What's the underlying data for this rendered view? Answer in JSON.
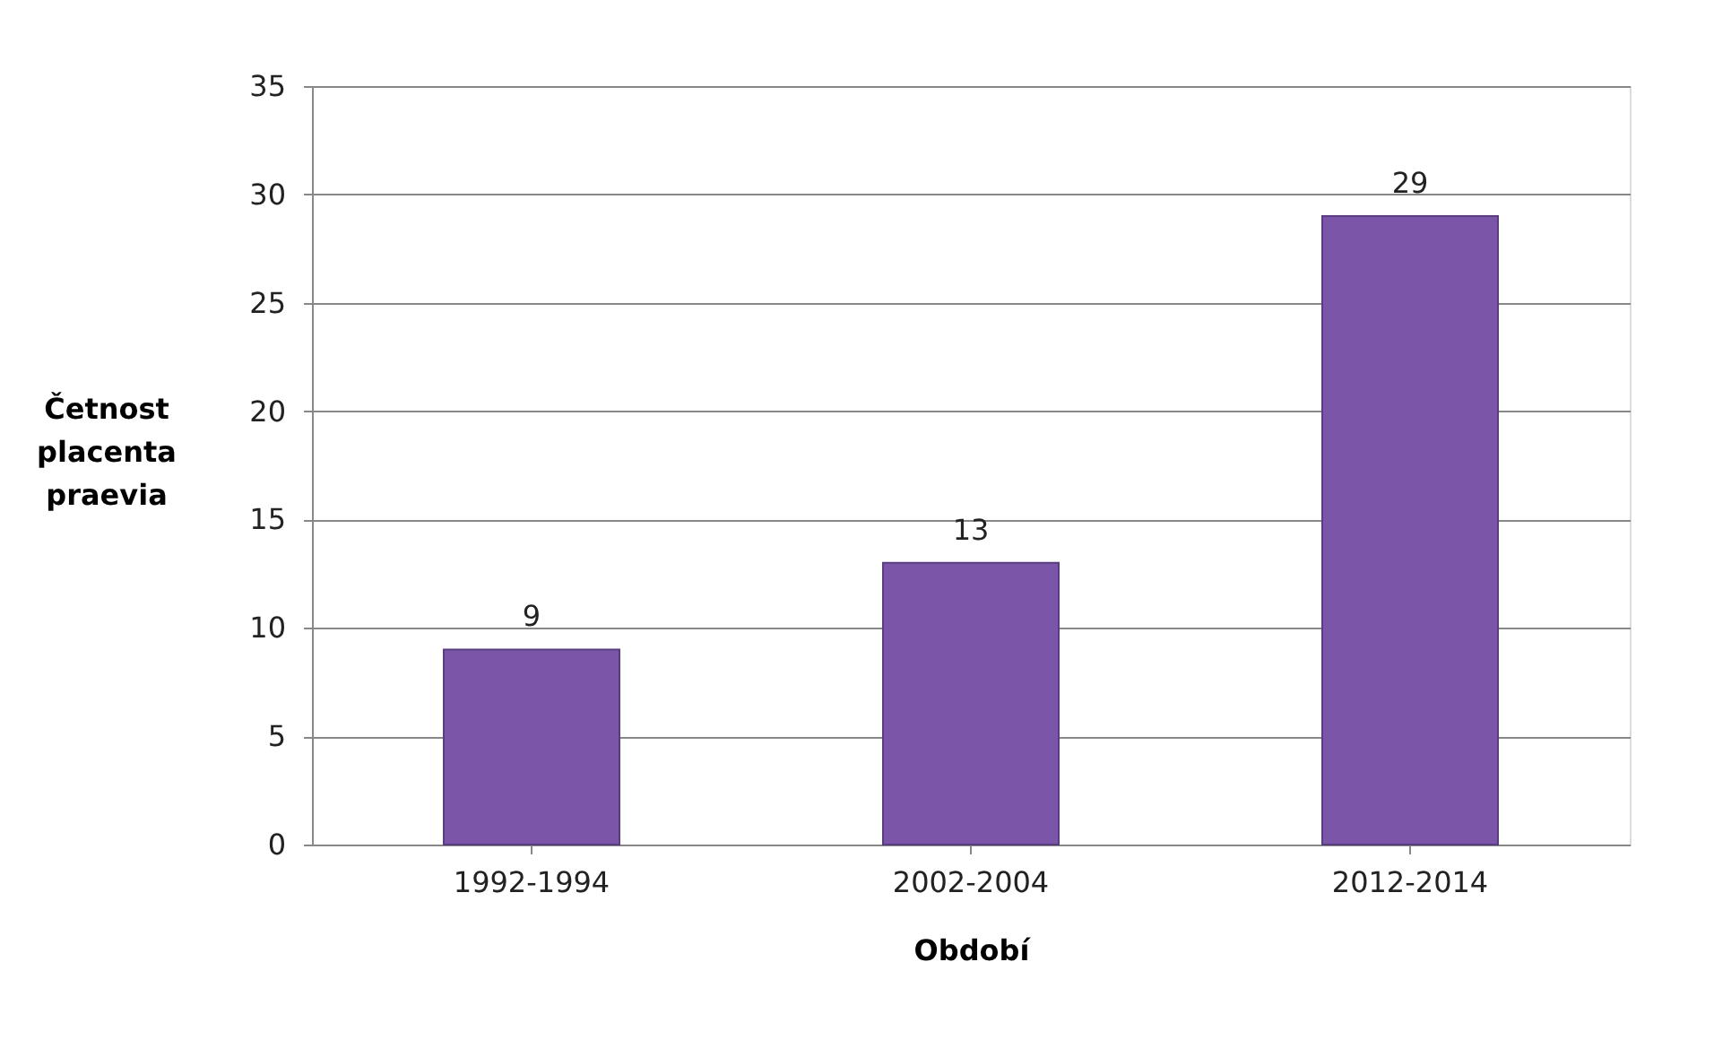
{
  "chart_data": {
    "type": "bar",
    "xlabel": "Období",
    "ylabel": "Četnost placenta praevia",
    "categories": [
      "1992-1994",
      "2002-2004",
      "2012-2014"
    ],
    "values": [
      9,
      13,
      29
    ],
    "color": "#7b56a8",
    "ylim": [
      0,
      35
    ],
    "yticks": [
      0,
      5,
      10,
      15,
      20,
      25,
      30,
      35
    ],
    "grid": "y",
    "data_labels": true
  }
}
